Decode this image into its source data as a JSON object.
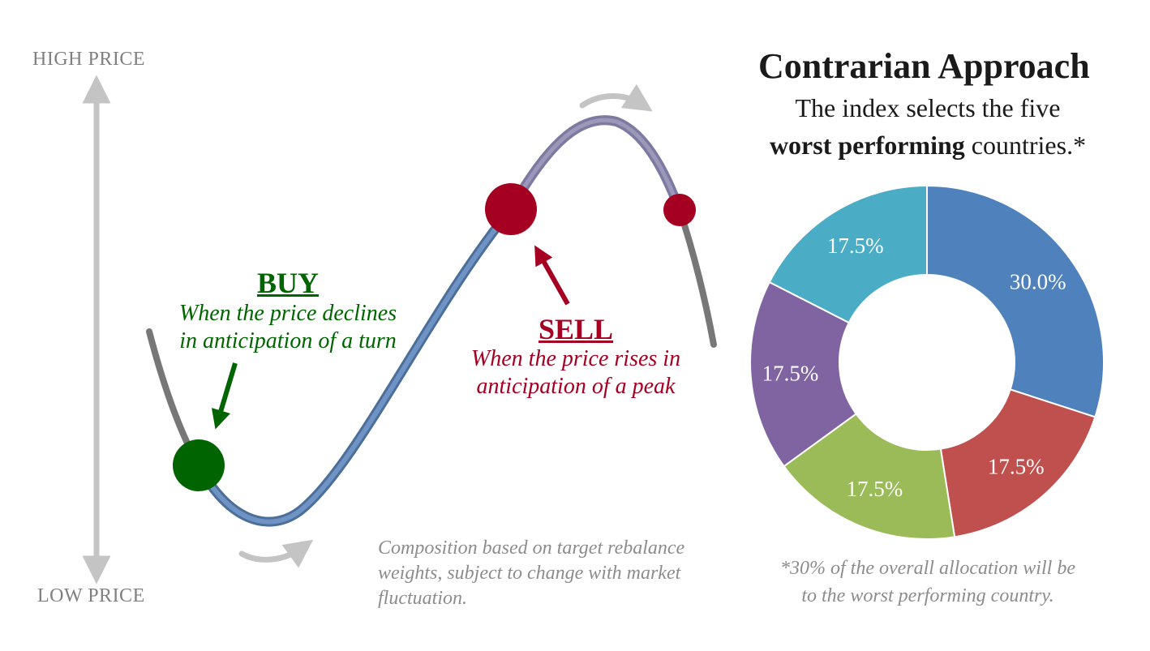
{
  "axis": {
    "high_label": "HIGH PRICE",
    "low_label": "LOW PRICE"
  },
  "buy": {
    "title": "BUY",
    "line1": "When the price declines",
    "line2": "in anticipation of a turn"
  },
  "sell": {
    "title": "SELL",
    "line1": "When the price rises in",
    "line2": "anticipation of a peak"
  },
  "note": {
    "line1": "Composition based on target rebalance",
    "line2": "weights, subject to change with market",
    "line3": "fluctuation."
  },
  "heading": {
    "title": "Contrarian Approach",
    "line1": "The index selects the five",
    "line2_bold": "worst performing",
    "line2_rest": " countries.*"
  },
  "footnote": {
    "line1": "*30% of the overall allocation will be",
    "line2": "to the worst performing country."
  },
  "colors": {
    "buy": "#006400",
    "sell": "#a50021",
    "curve_blue": "#5b7fb0",
    "curve_purple": "#8c86aa",
    "curve_gray": "#7a7a7a",
    "arrow_gray": "#c0c0c0"
  },
  "chart_data": {
    "type": "pie",
    "donut": true,
    "values": [
      30.0,
      17.5,
      17.5,
      17.5,
      17.5
    ],
    "labels": [
      "30.0%",
      "17.5%",
      "17.5%",
      "17.5%",
      "17.5%"
    ],
    "colors": [
      "#4f81bd",
      "#c0504d",
      "#9bbb59",
      "#8064a2",
      "#4bacc6"
    ]
  }
}
